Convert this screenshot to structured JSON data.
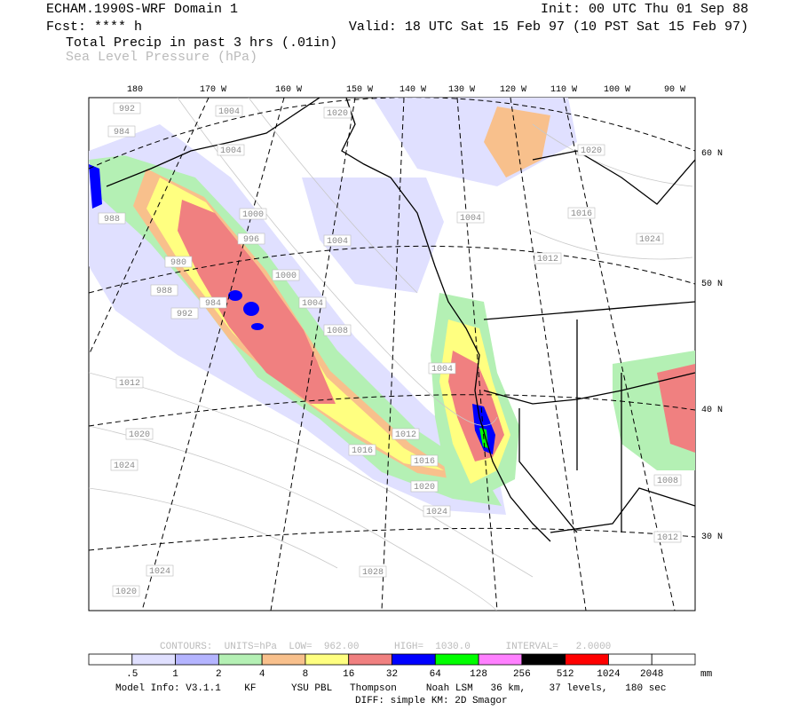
{
  "header": {
    "model": "ECHAM.1990S-WRF Domain 1",
    "init": "Init: 00 UTC Thu 01 Sep 88",
    "forecast": "Fcst: **** h",
    "valid": "Valid: 18 UTC Sat 15 Feb 97 (10 PST Sat 15 Feb 97)",
    "field": "Total Precip in past 3 hrs (.01in)",
    "overlay": "Sea Level Pressure (hPa)"
  },
  "map": {
    "longitude_labels": [
      "180",
      "170 W",
      "160 W",
      "150 W",
      "140 W",
      "130 W",
      "120 W",
      "110 W",
      "100 W",
      "90 W"
    ],
    "latitude_labels": [
      "60 N",
      "50 N",
      "40 N",
      "30 N"
    ],
    "contour_labels": [
      "992",
      "984",
      "1004",
      "1020",
      "1004",
      "1020",
      "988",
      "1000",
      "996",
      "1004",
      "1004",
      "1016",
      "1024",
      "1012",
      "980",
      "1000",
      "988",
      "984",
      "1004",
      "992",
      "1008",
      "1004",
      "1012",
      "1020",
      "1012",
      "1016",
      "1016",
      "1024",
      "1020",
      "1024",
      "1008",
      "1012",
      "1024",
      "1028",
      "1020"
    ]
  },
  "legend": {
    "contours": "CONTOURS:  UNITS=hPa  LOW=  962.00      HIGH=  1030.0      INTERVAL=   2.0000",
    "scale_labels": [
      ".5",
      "1",
      "2",
      "4",
      "8",
      "16",
      "32",
      "64",
      "128",
      "256",
      "512",
      "1024",
      "2048"
    ],
    "unit": "mm"
  },
  "footer": {
    "model_info": "Model Info: V3.1.1    KF      YSU PBL   Thompson     Noah LSM   36 km,    37 levels,   180 sec",
    "diffusion": "DIFF: simple KM: 2D Smagor"
  }
}
